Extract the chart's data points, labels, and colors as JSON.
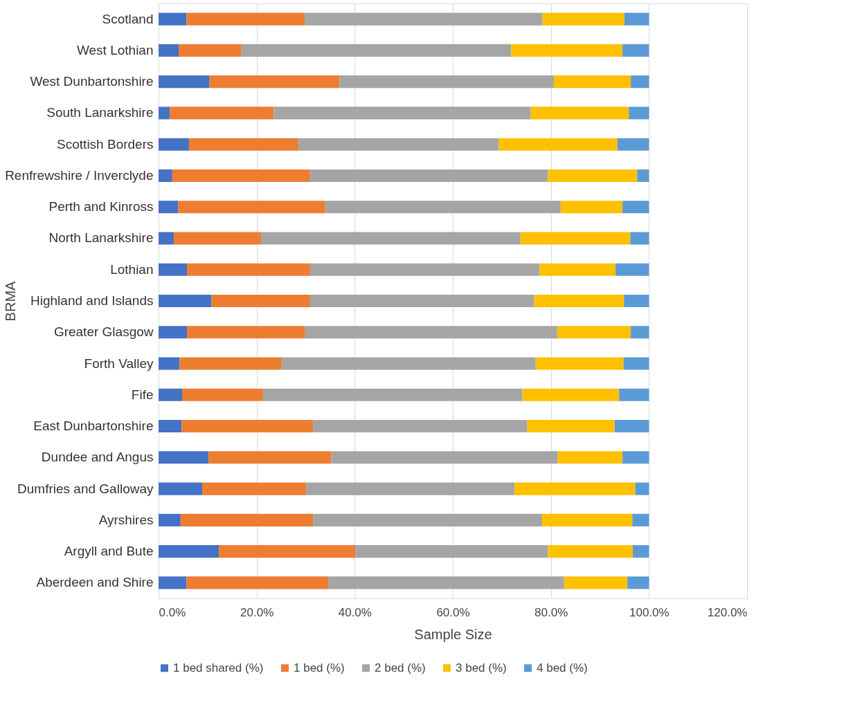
{
  "chart_data": {
    "type": "bar",
    "orientation": "horizontal",
    "stacked": true,
    "xlabel": "Sample Size",
    "ylabel": "BRMA",
    "categories": [
      "Scotland",
      "West Lothian",
      "West Dunbartonshire",
      "South Lanarkshire",
      "Scottish Borders",
      "Renfrewshire / Inverclyde",
      "Perth and Kinross",
      "North Lanarkshire",
      "Lothian",
      "Highland and Islands",
      "Greater Glasgow",
      "Forth Valley",
      "Fife",
      "East Dunbartonshire",
      "Dundee and Angus",
      "Dumfries and Galloway",
      "Ayrshires",
      "Argyll and Bute",
      "Aberdeen and Shire"
    ],
    "series": [
      {
        "name": "1 bed shared (%)",
        "color": "#4472c4",
        "values": [
          5.7,
          4.1,
          10.4,
          2.3,
          6.2,
          2.8,
          4.0,
          3.1,
          5.8,
          10.8,
          5.8,
          4.3,
          4.8,
          4.7,
          10.2,
          8.9,
          4.5,
          12.3,
          5.7
        ]
      },
      {
        "name": "1 bed (%)",
        "color": "#ed7d31",
        "values": [
          24.1,
          12.8,
          26.5,
          21.2,
          22.3,
          28.1,
          30.0,
          17.8,
          25.1,
          20.1,
          24.1,
          20.8,
          16.5,
          26.8,
          25.0,
          21.2,
          27.0,
          27.8,
          28.9
        ]
      },
      {
        "name": "2 bed (%)",
        "color": "#a5a5a5",
        "values": [
          48.5,
          55.0,
          43.7,
          52.4,
          40.9,
          48.5,
          48.0,
          52.9,
          46.8,
          45.7,
          51.4,
          51.8,
          52.9,
          43.7,
          46.2,
          42.5,
          46.7,
          39.3,
          48.1
        ]
      },
      {
        "name": "3 bed (%)",
        "color": "#ffc000",
        "values": [
          16.7,
          22.7,
          15.7,
          20.0,
          24.2,
          18.2,
          12.6,
          22.4,
          15.5,
          18.3,
          15.0,
          17.9,
          19.7,
          17.8,
          13.2,
          24.6,
          18.4,
          17.3,
          12.9
        ]
      },
      {
        "name": "4 bed (%)",
        "color": "#5b9bd5",
        "values": [
          5.0,
          5.4,
          3.7,
          4.1,
          6.4,
          2.4,
          5.4,
          3.8,
          6.8,
          5.1,
          3.7,
          5.2,
          6.1,
          7.0,
          5.4,
          2.8,
          3.4,
          3.3,
          4.4
        ]
      }
    ],
    "xlim": [
      0,
      120
    ],
    "xticks": [
      {
        "value": 0,
        "label": "0.0%"
      },
      {
        "value": 20,
        "label": "20.0%"
      },
      {
        "value": 40,
        "label": "40.0%"
      },
      {
        "value": 60,
        "label": "60.0%"
      },
      {
        "value": 80,
        "label": "80.0%"
      },
      {
        "value": 100,
        "label": "100.0%"
      },
      {
        "value": 120,
        "label": "120.0%"
      }
    ],
    "grid": "x",
    "legend": "bottom"
  }
}
